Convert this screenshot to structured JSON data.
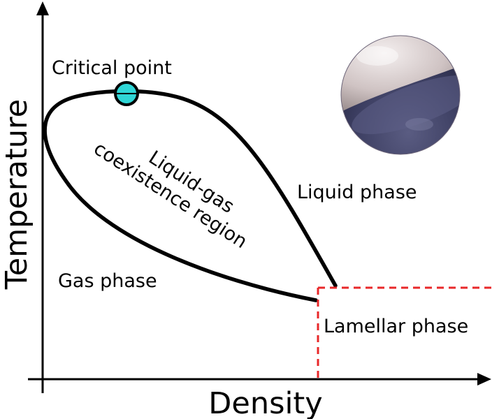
{
  "axes": {
    "x_label": "Density",
    "y_label": "Temperature"
  },
  "labels": {
    "critical_point": "Critical point",
    "coexistence_line1": "Liquid-gas",
    "coexistence_line2": "coexistence region",
    "liquid_phase": "Liquid phase",
    "gas_phase": "Gas phase",
    "lamellar_phase": "Lamellar phase"
  },
  "colors": {
    "curve": "#000000",
    "critical_point_fill": "#2fd6d6",
    "lamellar_boundary": "#e8282a",
    "sphere_top": "#c9bcbc",
    "sphere_bottom": "#3b3d60"
  },
  "icons": {
    "sphere": "two-phase-sphere-icon"
  }
}
